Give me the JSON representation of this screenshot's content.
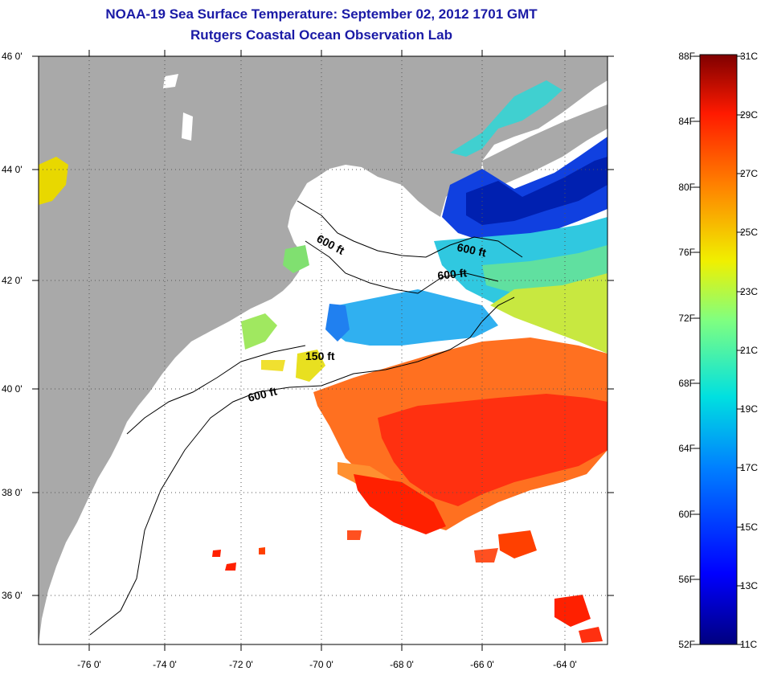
{
  "title": "NOAA-19 Sea Surface Temperature:  September 02, 2012 1701 GMT",
  "subtitle": "Rutgers Coastal Ocean Observation Lab",
  "map": {
    "lat_labels": [
      "46 0'",
      "44 0'",
      "42 0'",
      "40 0'",
      "38 0'",
      "36 0'"
    ],
    "lon_labels": [
      "-76 0'",
      "-74 0'",
      "-72 0'",
      "-70 0'",
      "-68 0'",
      "-66 0'",
      "-64 0'"
    ],
    "contour_labels": [
      "600 ft",
      "600 ft",
      "600 ft",
      "150 ft",
      "600 ft"
    ],
    "colors": {
      "land": "#a9a9a9",
      "ocean": "#ffffff"
    }
  },
  "colorbar": {
    "fahrenheit_labels": [
      "88F",
      "84F",
      "80F",
      "76F",
      "72F",
      "68F",
      "64F",
      "60F",
      "56F",
      "52F"
    ],
    "celsius_labels": [
      "31C",
      "29C",
      "27C",
      "25C",
      "23C",
      "21C",
      "19C",
      "17C",
      "15C",
      "13C",
      "11C"
    ]
  }
}
